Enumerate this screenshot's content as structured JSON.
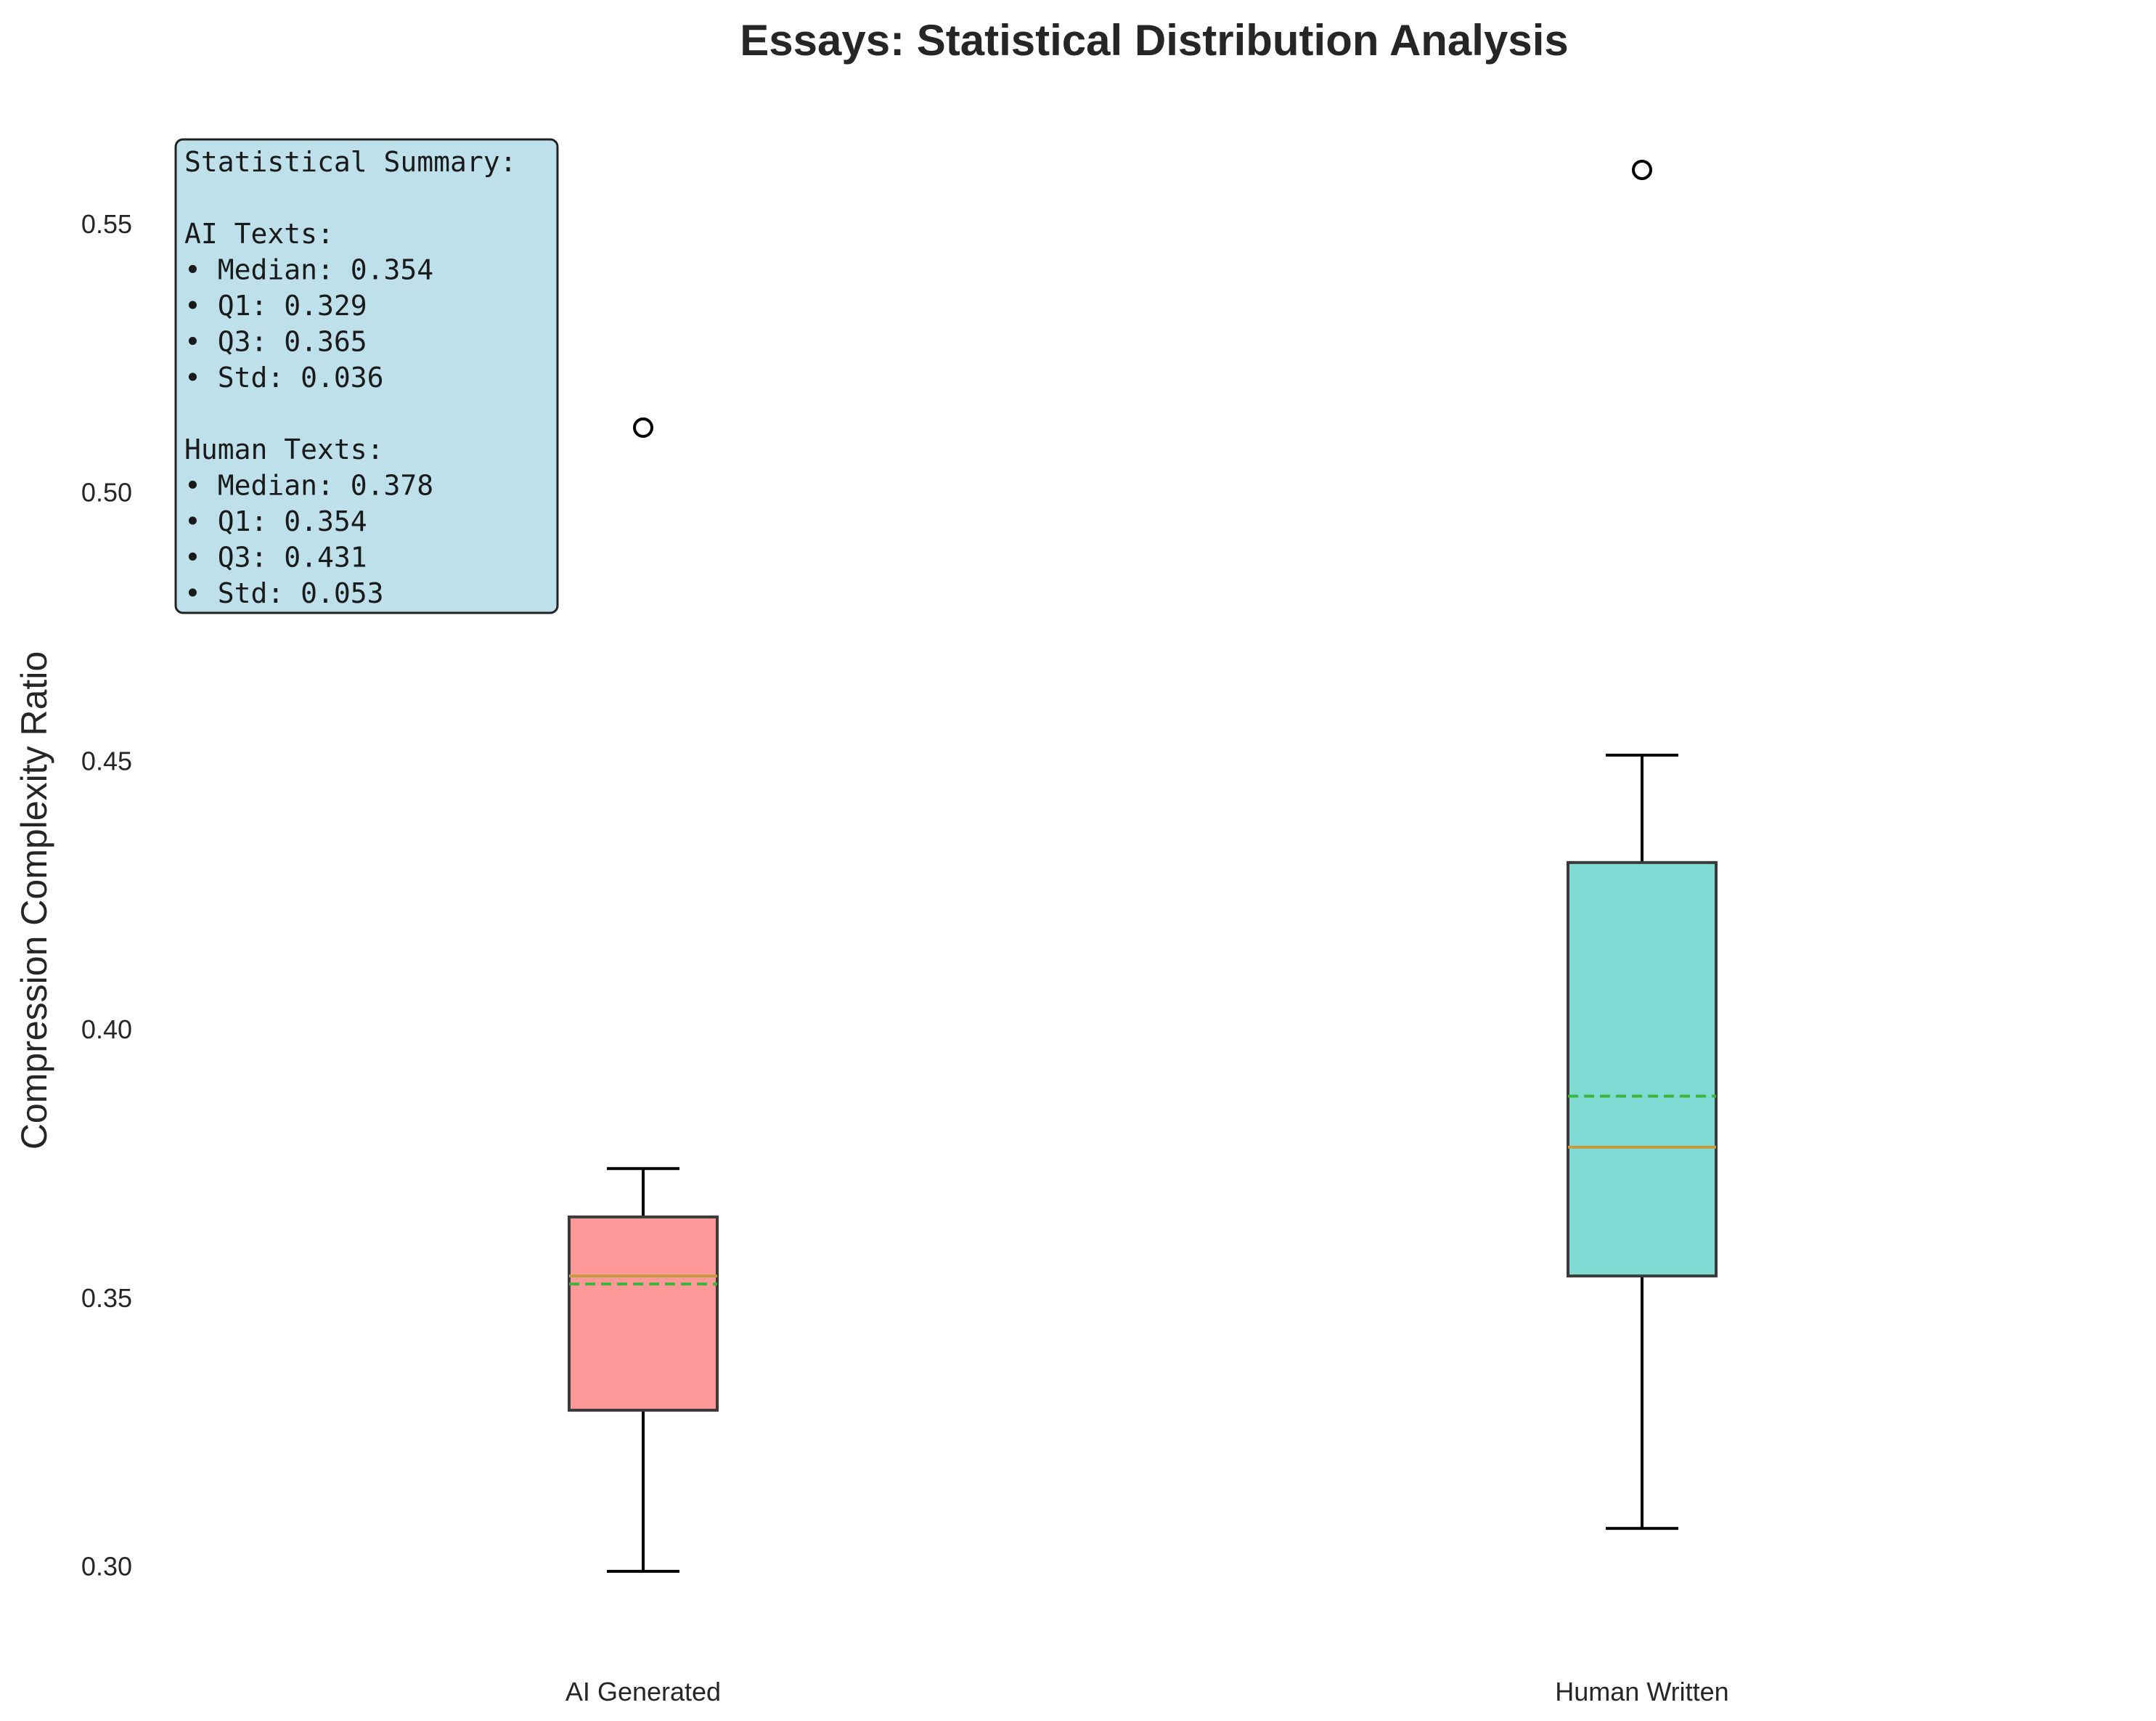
{
  "chart_data": {
    "type": "box",
    "title": "Essays: Statistical Distribution Analysis",
    "xlabel": "",
    "ylabel": "Compression Complexity Ratio",
    "ylim": [
      0.286,
      0.57
    ],
    "yticks": [
      0.3,
      0.35,
      0.4,
      0.45,
      0.5,
      0.55
    ],
    "ytick_labels": [
      "0.30",
      "0.35",
      "0.40",
      "0.45",
      "0.50",
      "0.55"
    ],
    "grid": false,
    "categories": [
      "AI Generated",
      "Human Written"
    ],
    "boxes": [
      {
        "category": "AI Generated",
        "whisker_low": 0.299,
        "q1": 0.329,
        "median": 0.354,
        "mean": 0.3525,
        "q3": 0.365,
        "whisker_high": 0.374,
        "outliers": [
          0.512
        ],
        "fill_color": "#ff9999"
      },
      {
        "category": "Human Written",
        "whisker_low": 0.307,
        "q1": 0.354,
        "median": 0.378,
        "mean": 0.3875,
        "q3": 0.431,
        "whisker_high": 0.451,
        "outliers": [
          0.56
        ],
        "fill_color": "#80dbd5"
      }
    ],
    "median_line_color": "#c49a3c",
    "mean_line_color": "#3db53d",
    "summary_box": {
      "lines": [
        "Statistical Summary:",
        "",
        "AI Texts:",
        "• Median: 0.354",
        "• Q1: 0.329",
        "• Q3: 0.365",
        "• Std: 0.036",
        "",
        "Human Texts:",
        "• Median: 0.378",
        "• Q1: 0.354",
        "• Q3: 0.431",
        "• Std: 0.053"
      ],
      "background_color": "#bde0eb"
    }
  }
}
